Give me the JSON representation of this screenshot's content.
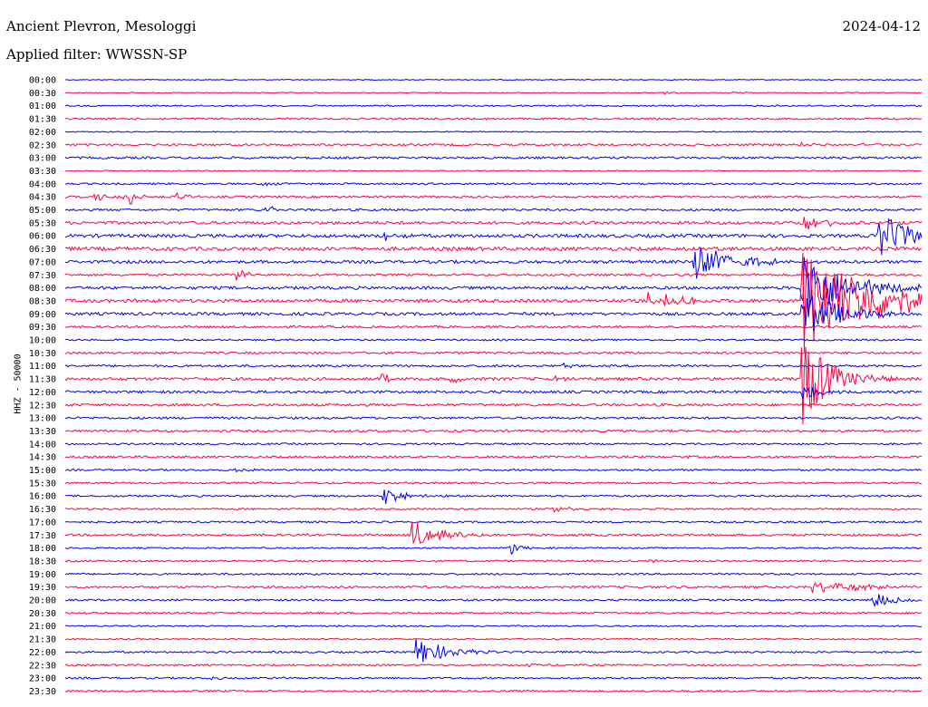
{
  "header": {
    "station": "Ancient Plevron, Mesologgi",
    "filter": "Applied filter: WWSSN-SP",
    "date": "2024-04-12"
  },
  "chart_data": {
    "type": "line",
    "title": "Ancient Plevron, Mesologgi",
    "subtitle": "Applied filter: WWSSN-SP",
    "ylabel": "HHZ - 50000",
    "xlabel": "",
    "colors": {
      "blue": "#0000ee",
      "red": "#ff0040"
    },
    "rows": [
      "00:00",
      "00:30",
      "01:00",
      "01:30",
      "02:00",
      "02:30",
      "03:00",
      "03:30",
      "04:00",
      "04:30",
      "05:00",
      "05:30",
      "06:00",
      "06:30",
      "07:00",
      "07:30",
      "08:00",
      "08:30",
      "09:00",
      "09:30",
      "10:00",
      "10:30",
      "11:00",
      "11:30",
      "12:00",
      "12:30",
      "13:00",
      "13:30",
      "14:00",
      "14:30",
      "15:00",
      "15:30",
      "16:00",
      "16:30",
      "17:00",
      "17:30",
      "18:00",
      "18:30",
      "19:00",
      "19:30",
      "20:00",
      "20:30",
      "21:00",
      "21:30",
      "22:00",
      "22:30",
      "23:00",
      "23:30"
    ],
    "row_noise": [
      0.5,
      0.5,
      0.8,
      1.0,
      0.6,
      1.2,
      1.2,
      0.6,
      1.0,
      1.2,
      1.2,
      1.6,
      1.8,
      2.0,
      1.6,
      1.2,
      1.6,
      1.8,
      1.6,
      1.2,
      1.0,
      1.2,
      1.2,
      1.6,
      1.4,
      1.4,
      1.2,
      1.2,
      1.0,
      1.2,
      1.0,
      1.0,
      1.0,
      1.0,
      1.0,
      1.2,
      0.8,
      1.0,
      1.0,
      1.2,
      1.0,
      1.0,
      0.8,
      0.8,
      1.0,
      1.0,
      1.0,
      1.0
    ],
    "events": [
      {
        "row": 1,
        "x": 0.7,
        "amp": 2,
        "dur": 0.01
      },
      {
        "row": 1,
        "x": 0.78,
        "amp": 2,
        "dur": 0.008
      },
      {
        "row": 4,
        "x": 0.36,
        "amp": 2,
        "dur": 0.006
      },
      {
        "row": 5,
        "x": 0.73,
        "amp": 2,
        "dur": 0.01
      },
      {
        "row": 5,
        "x": 0.86,
        "amp": 2,
        "dur": 0.012
      },
      {
        "row": 5,
        "x": 0.93,
        "amp": 3,
        "dur": 0.008
      },
      {
        "row": 8,
        "x": 0.23,
        "amp": 4,
        "dur": 0.008
      },
      {
        "row": 9,
        "x": 0.035,
        "amp": 7,
        "dur": 0.008
      },
      {
        "row": 9,
        "x": 0.055,
        "amp": 7,
        "dur": 0.008
      },
      {
        "row": 9,
        "x": 0.075,
        "amp": 9,
        "dur": 0.01
      },
      {
        "row": 9,
        "x": 0.13,
        "amp": 7,
        "dur": 0.01
      },
      {
        "row": 10,
        "x": 0.233,
        "amp": 9,
        "dur": 0.008
      },
      {
        "row": 11,
        "x": 0.86,
        "amp": 10,
        "dur": 0.03
      },
      {
        "row": 12,
        "x": 0.37,
        "amp": 7,
        "dur": 0.012
      },
      {
        "row": 12,
        "x": 0.95,
        "amp": 24,
        "dur": 0.05
      },
      {
        "row": 13,
        "x": 0.75,
        "amp": 3,
        "dur": 0.03
      },
      {
        "row": 14,
        "x": 0.735,
        "amp": 22,
        "dur": 0.04
      },
      {
        "row": 15,
        "x": 0.2,
        "amp": 8,
        "dur": 0.014
      },
      {
        "row": 16,
        "x": 0.86,
        "amp": 40,
        "dur": 0.05
      },
      {
        "row": 17,
        "x": 0.68,
        "amp": 9,
        "dur": 0.01
      },
      {
        "row": 17,
        "x": 0.7,
        "amp": 9,
        "dur": 0.01
      },
      {
        "row": 17,
        "x": 0.72,
        "amp": 9,
        "dur": 0.01
      },
      {
        "row": 17,
        "x": 0.86,
        "amp": 60,
        "dur": 0.08
      },
      {
        "row": 18,
        "x": 0.86,
        "amp": 30,
        "dur": 0.04
      },
      {
        "row": 22,
        "x": 0.58,
        "amp": 3,
        "dur": 0.015
      },
      {
        "row": 23,
        "x": 0.37,
        "amp": 7,
        "dur": 0.008
      },
      {
        "row": 23,
        "x": 0.45,
        "amp": 7,
        "dur": 0.008
      },
      {
        "row": 23,
        "x": 0.57,
        "amp": 5,
        "dur": 0.01
      },
      {
        "row": 23,
        "x": 0.86,
        "amp": 55,
        "dur": 0.03
      },
      {
        "row": 24,
        "x": 0.86,
        "amp": 10,
        "dur": 0.02
      },
      {
        "row": 29,
        "x": 0.72,
        "amp": 2,
        "dur": 0.01
      },
      {
        "row": 30,
        "x": 0.2,
        "amp": 3,
        "dur": 0.015
      },
      {
        "row": 32,
        "x": 0.372,
        "amp": 10,
        "dur": 0.02
      },
      {
        "row": 33,
        "x": 0.57,
        "amp": 4,
        "dur": 0.02
      },
      {
        "row": 35,
        "x": 0.405,
        "amp": 18,
        "dur": 0.025
      },
      {
        "row": 36,
        "x": 0.52,
        "amp": 8,
        "dur": 0.012
      },
      {
        "row": 37,
        "x": 0.68,
        "amp": 2,
        "dur": 0.02
      },
      {
        "row": 39,
        "x": 0.87,
        "amp": 7,
        "dur": 0.06
      },
      {
        "row": 40,
        "x": 0.94,
        "amp": 12,
        "dur": 0.02
      },
      {
        "row": 42,
        "x": 0.25,
        "amp": 2,
        "dur": 0.01
      },
      {
        "row": 44,
        "x": 0.41,
        "amp": 18,
        "dur": 0.03
      },
      {
        "row": 45,
        "x": 0.54,
        "amp": 2,
        "dur": 0.006
      },
      {
        "row": 46,
        "x": 0.17,
        "amp": 2,
        "dur": 0.015
      },
      {
        "row": 46,
        "x": 0.25,
        "amp": 2,
        "dur": 0.01
      }
    ]
  }
}
